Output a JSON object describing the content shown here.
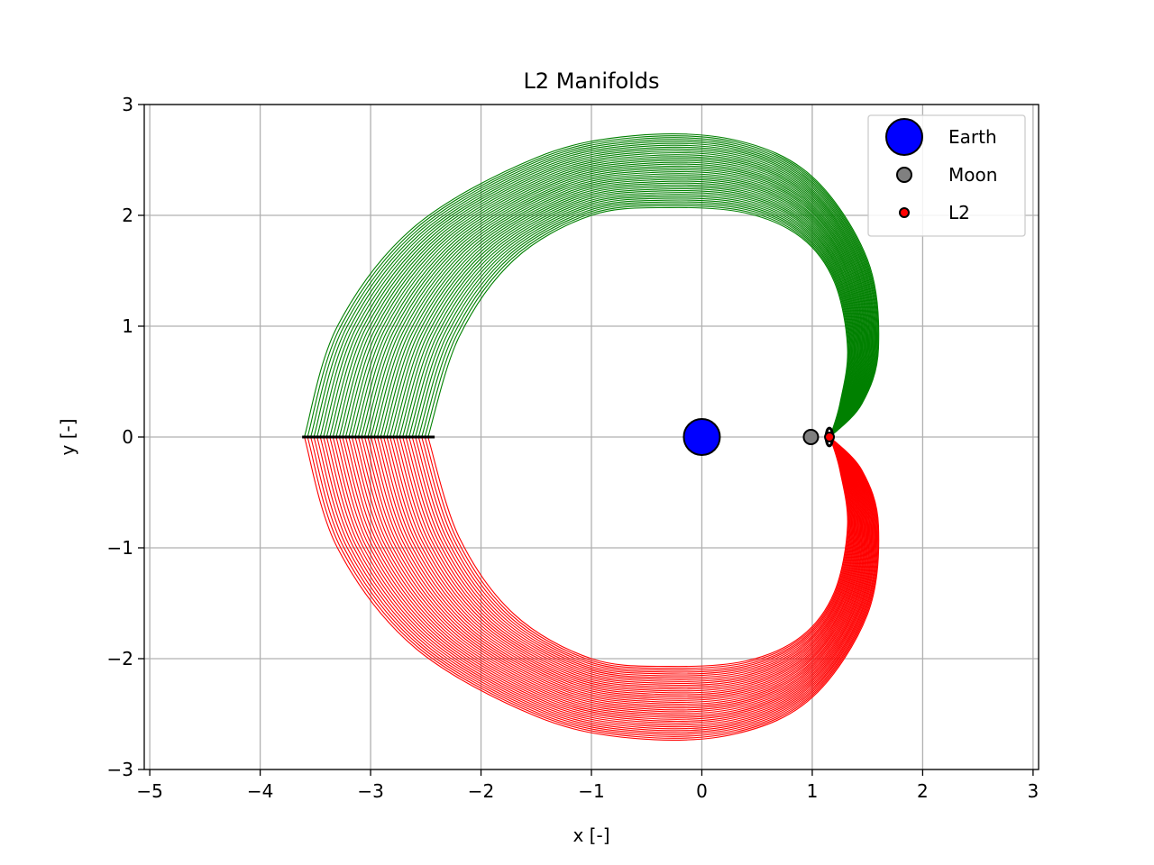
{
  "chart_data": {
    "type": "line",
    "title": "L2 Manifolds",
    "xlabel": "x [-]",
    "ylabel": "y [-]",
    "xlim": [
      -5.05,
      3.05
    ],
    "ylim": [
      -3.0,
      3.0
    ],
    "xticks": [
      -5,
      -4,
      -3,
      -2,
      -1,
      0,
      1,
      2,
      3
    ],
    "yticks": [
      -3,
      -2,
      -1,
      0,
      1,
      2,
      3
    ],
    "xtick_labels": [
      "−5",
      "−4",
      "−3",
      "−2",
      "−1",
      "0",
      "1",
      "2",
      "3"
    ],
    "ytick_labels": [
      "−3",
      "−2",
      "−1",
      "0",
      "1",
      "2",
      "3"
    ],
    "grid": true,
    "legend_position": "top-right",
    "manifold_count": 40,
    "series": [
      {
        "color": "#008000",
        "inner_boundary": [
          [
            1.16,
            0.0
          ],
          [
            1.25,
            0.3
          ],
          [
            1.32,
            0.8
          ],
          [
            1.2,
            1.4
          ],
          [
            0.9,
            1.8
          ],
          [
            0.4,
            2.02
          ],
          [
            -0.3,
            2.07
          ],
          [
            -1.0,
            2.0
          ],
          [
            -1.7,
            1.6
          ],
          [
            -2.2,
            0.9
          ],
          [
            -2.48,
            0.0
          ]
        ],
        "outer_boundary": [
          [
            1.16,
            0.0
          ],
          [
            1.45,
            0.3
          ],
          [
            1.6,
            0.8
          ],
          [
            1.5,
            1.6
          ],
          [
            1.0,
            2.35
          ],
          [
            0.3,
            2.68
          ],
          [
            -0.6,
            2.72
          ],
          [
            -1.5,
            2.52
          ],
          [
            -2.6,
            1.9
          ],
          [
            -3.3,
            1.0
          ],
          [
            -3.6,
            0.0
          ]
        ]
      },
      {
        "color": "#ff0000",
        "inner_boundary": [
          [
            1.16,
            0.0
          ],
          [
            1.25,
            -0.3
          ],
          [
            1.32,
            -0.8
          ],
          [
            1.2,
            -1.4
          ],
          [
            0.9,
            -1.8
          ],
          [
            0.4,
            -2.02
          ],
          [
            -0.3,
            -2.07
          ],
          [
            -1.0,
            -2.0
          ],
          [
            -1.7,
            -1.6
          ],
          [
            -2.2,
            -0.9
          ],
          [
            -2.48,
            0.0
          ]
        ],
        "outer_boundary": [
          [
            1.16,
            0.0
          ],
          [
            1.45,
            -0.3
          ],
          [
            1.6,
            -0.8
          ],
          [
            1.5,
            -1.6
          ],
          [
            1.0,
            -2.35
          ],
          [
            0.3,
            -2.68
          ],
          [
            -0.6,
            -2.72
          ],
          [
            -1.5,
            -2.52
          ],
          [
            -2.6,
            -1.9
          ],
          [
            -3.3,
            -1.0
          ],
          [
            -3.6,
            0.0
          ]
        ]
      }
    ],
    "poincare_section": {
      "x": [
        -3.62,
        -2.42
      ],
      "y": 0,
      "color": "#000000"
    },
    "periodic_orbit": {
      "center": [
        1.155,
        0.0
      ],
      "rx": 0.03,
      "ry": 0.08,
      "color": "#000000"
    },
    "bodies": [
      {
        "name": "Earth",
        "x": 0.0,
        "y": 0.0,
        "color": "#0000ff",
        "size": "large"
      },
      {
        "name": "Moon",
        "x": 0.988,
        "y": 0.0,
        "color": "#808080",
        "size": "medium"
      },
      {
        "name": "L2",
        "x": 1.156,
        "y": 0.0,
        "color": "#ff0000",
        "size": "small"
      }
    ]
  }
}
